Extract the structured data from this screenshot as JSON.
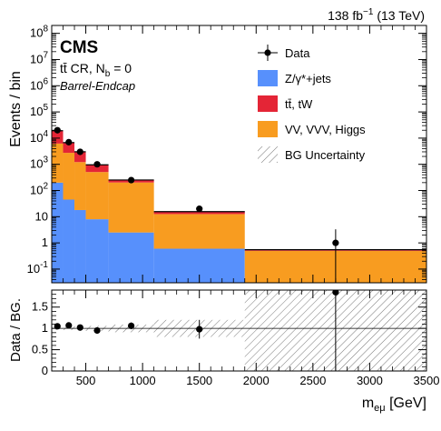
{
  "chart_data": {
    "type": "bar",
    "stacked": true,
    "log_y": true,
    "x_bin_edges": [
      200,
      300,
      400,
      500,
      700,
      1100,
      1900,
      3500
    ],
    "xlim": [
      200,
      3500
    ],
    "ylim": [
      0.03,
      200000000
    ],
    "x_tick_labels": [
      "500",
      "1000",
      "1500",
      "2000",
      "2500",
      "3000",
      "3500"
    ],
    "x_tick_values": [
      500,
      1000,
      1500,
      2000,
      2500,
      3000,
      3500
    ],
    "y_tick_labels": [
      "10^-1",
      "1",
      "10",
      "10^2",
      "10^3",
      "10^4",
      "10^5",
      "10^6",
      "10^7",
      "10^8"
    ],
    "ylabel": "Events / bin",
    "xlabel_main": "m",
    "xlabel_sub": "eμ",
    "xlabel_unit": " [GeV]",
    "lumi_label": "138 fb",
    "lumi_sup": "−1",
    "lumi_energy": " (13 TeV)",
    "experiment": "CMS",
    "region_label_a": "tt̄ CR, N",
    "region_label_sub": "b",
    "region_label_b": " = 0",
    "region_label_c": "Barrel-Endcap",
    "legend_position": "top-right",
    "legend": [
      {
        "label": "Data",
        "style": "marker"
      },
      {
        "label": "Z/γ*+jets",
        "style": "fill",
        "color": "#5790fc"
      },
      {
        "label": "tt̄, tW",
        "style": "fill",
        "color": "#e42536"
      },
      {
        "label": "VV, VVV, Higgs",
        "style": "fill",
        "color": "#f89c20"
      },
      {
        "label": "BG Uncertainty",
        "style": "hatch"
      }
    ],
    "series": [
      {
        "name": "Z/γ*+jets",
        "color": "#5790fc",
        "values": [
          200,
          45,
          18,
          8,
          2.5,
          0.6,
          0.0
        ]
      },
      {
        "name": "VV, VVV, Higgs",
        "color": "#f89c20",
        "values": [
          6000,
          2700,
          1200,
          500,
          200,
          12,
          0.5
        ]
      },
      {
        "name": "tt̄, tW",
        "color": "#e42536",
        "values": [
          13000,
          4000,
          1800,
          450,
          50,
          3,
          0.05
        ]
      }
    ],
    "data_points": [
      {
        "x": 250,
        "y": 20000,
        "yerr": 150
      },
      {
        "x": 350,
        "y": 7000,
        "yerr": 85
      },
      {
        "x": 450,
        "y": 3000,
        "yerr": 55
      },
      {
        "x": 600,
        "y": 1000,
        "yerr": 32
      },
      {
        "x": 900,
        "y": 250,
        "yerr": 16
      },
      {
        "x": 1500,
        "y": 20,
        "yerr": 4.5
      },
      {
        "x": 2700,
        "y": 1,
        "yerr_lo": 0.99,
        "yerr_hi": 2.3
      }
    ],
    "ratio": {
      "ylabel": "Data / BG.",
      "ylim": [
        0,
        1.9
      ],
      "y_tick_labels": [
        "0",
        "0.5",
        "1",
        "1.5"
      ],
      "y_tick_values": [
        0,
        0.5,
        1,
        1.5
      ],
      "points": [
        {
          "x": 250,
          "y": 1.05,
          "err": 0.03
        },
        {
          "x": 350,
          "y": 1.07,
          "err": 0.04
        },
        {
          "x": 450,
          "y": 1.02,
          "err": 0.05
        },
        {
          "x": 600,
          "y": 0.95,
          "err": 0.05
        },
        {
          "x": 900,
          "y": 1.06,
          "err": 0.08
        },
        {
          "x": 1500,
          "y": 0.98,
          "err": 0.22
        },
        {
          "x": 2700,
          "y": 1.85,
          "err": 1.85
        }
      ],
      "uncertainty_band": [
        0.04,
        0.04,
        0.05,
        0.06,
        0.09,
        0.2,
        1.0
      ]
    }
  }
}
